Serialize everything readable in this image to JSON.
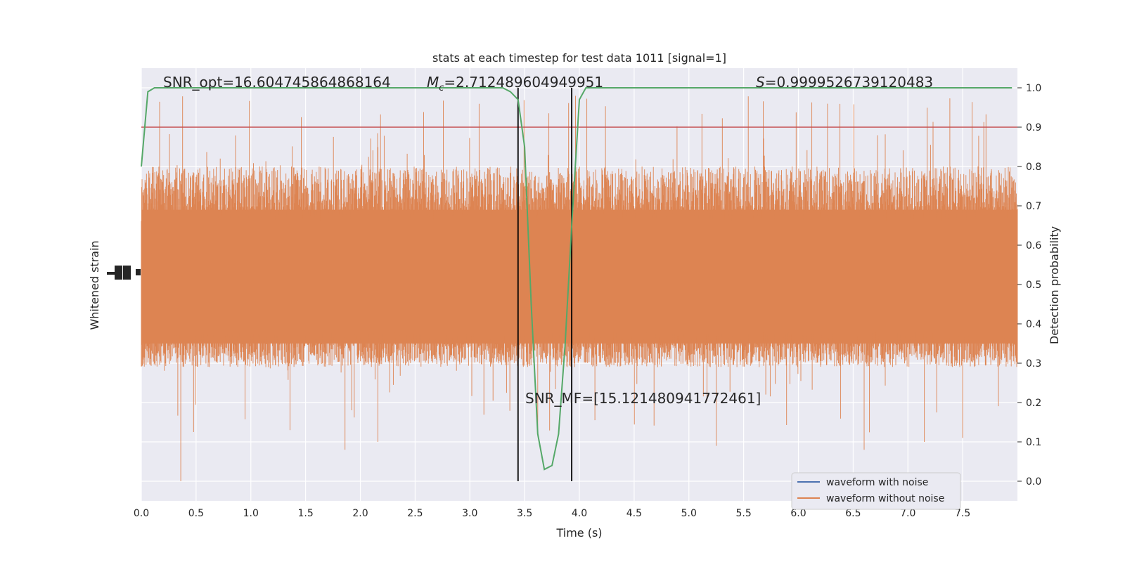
{
  "chart_data": {
    "type": "line",
    "title": "stats at each timestep for test data 1011 [signal=1]",
    "xlabel": "Time (s)",
    "ylabel_left": "Whitened strain",
    "ylabel_right": "Detection probability",
    "xlim": [
      0.0,
      8.0
    ],
    "ylim_right": [
      -0.05,
      1.05
    ],
    "x_ticks": [
      "0.0",
      "0.5",
      "1.0",
      "1.5",
      "2.0",
      "2.5",
      "3.0",
      "3.5",
      "4.0",
      "4.5",
      "5.0",
      "5.5",
      "6.0",
      "6.5",
      "7.0",
      "7.5"
    ],
    "y_ticks_right": [
      "0.0",
      "0.1",
      "0.2",
      "0.3",
      "0.4",
      "0.5",
      "0.6",
      "0.7",
      "0.8",
      "0.9",
      "1.0"
    ],
    "annotations": {
      "snr_opt": "SNR_opt=16.604745864868164",
      "mc_symbol": "M",
      "mc_subscript": "c",
      "mc_value": "=2.712489604949951",
      "s_symbol": "S",
      "s_value": "=0.9999526739120483",
      "snr_mf": "SNR_MF=[15.121480941772461]"
    },
    "legend": {
      "placement": "lower-right",
      "entries": [
        {
          "label": "waveform with noise",
          "color": "#4c72b0"
        },
        {
          "label": "waveform without noise",
          "color": "#dd8452"
        }
      ]
    },
    "threshold": {
      "value": 0.9,
      "color": "#c44e52"
    },
    "vertical_markers": [
      3.44,
      3.93
    ],
    "noise_waveform": {
      "color": "#dd8452",
      "center": 0.525,
      "typical_range": [
        0.29,
        0.8
      ],
      "extreme_range": [
        0.0,
        0.98
      ]
    },
    "detection_probability": {
      "color": "#55a868",
      "x": [
        0.0,
        0.06,
        0.12,
        0.5,
        1.0,
        2.0,
        3.0,
        3.3,
        3.37,
        3.44,
        3.5,
        3.56,
        3.62,
        3.68,
        3.75,
        3.81,
        3.87,
        3.93,
        4.0,
        4.06,
        4.12,
        5.0,
        6.0,
        7.0,
        7.95
      ],
      "y": [
        0.8,
        0.99,
        1.0,
        1.0,
        1.0,
        1.0,
        1.0,
        1.0,
        0.99,
        0.97,
        0.85,
        0.45,
        0.12,
        0.03,
        0.04,
        0.12,
        0.35,
        0.65,
        0.97,
        1.0,
        1.0,
        1.0,
        1.0,
        1.0,
        1.0
      ]
    },
    "grid": true,
    "background_color": "#eaeaf2"
  }
}
